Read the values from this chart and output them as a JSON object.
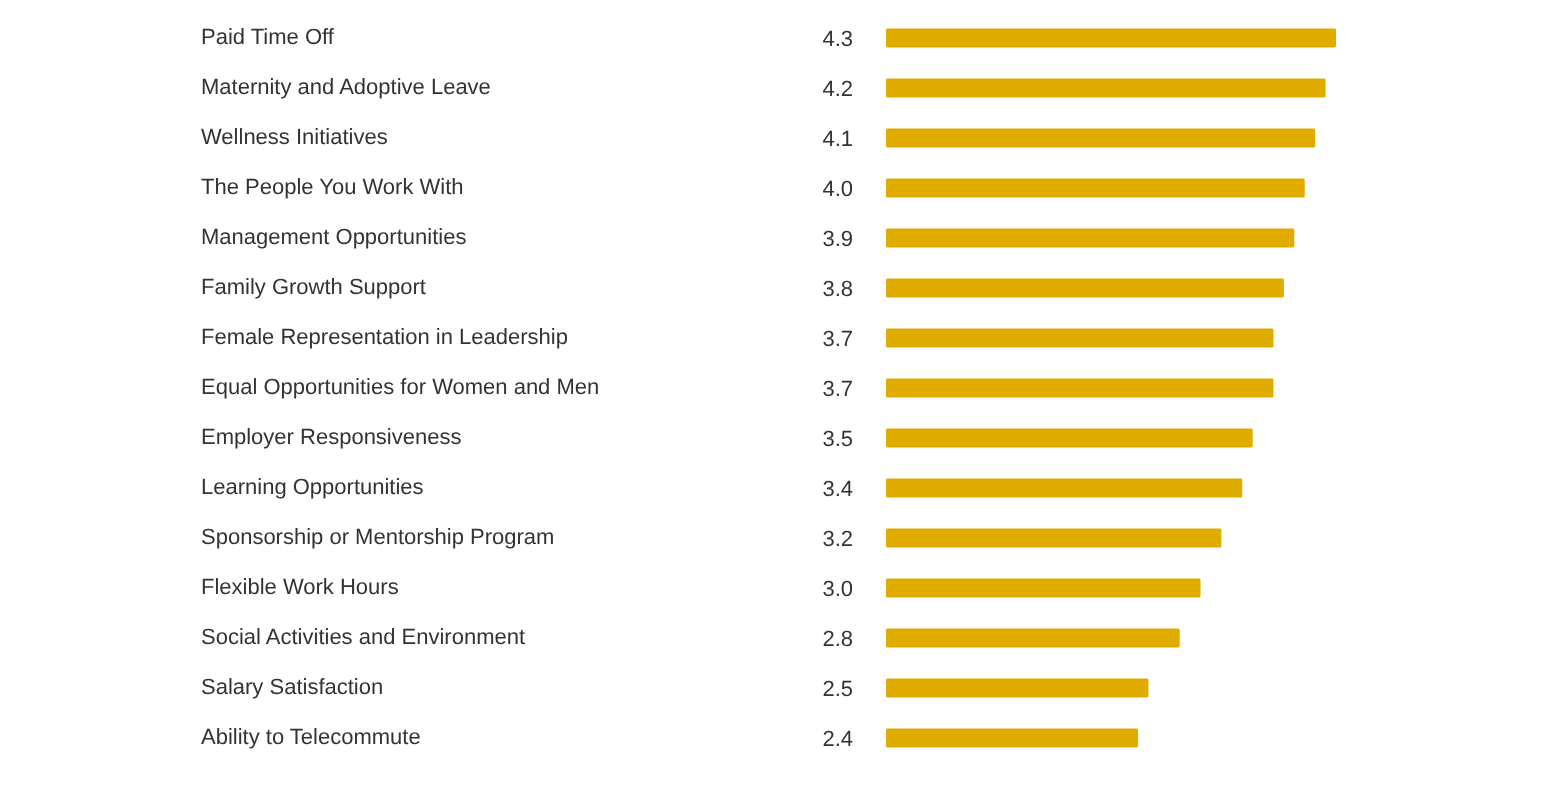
{
  "chart_data": {
    "type": "bar",
    "orientation": "horizontal",
    "categories": [
      "Paid Time Off",
      "Maternity and Adoptive Leave",
      "Wellness Initiatives",
      "The People You Work With",
      "Management Opportunities",
      "Family Growth Support",
      "Female Representation in Leadership",
      "Equal Opportunities for Women and Men",
      "Employer Responsiveness",
      "Learning Opportunities",
      "Sponsorship or Mentorship Program",
      "Flexible Work Hours",
      "Social Activities and Environment",
      "Salary Satisfaction",
      "Ability to Telecommute"
    ],
    "values": [
      4.3,
      4.2,
      4.1,
      4.0,
      3.9,
      3.8,
      3.7,
      3.7,
      3.5,
      3.4,
      3.2,
      3.0,
      2.8,
      2.5,
      2.4
    ],
    "value_labels": [
      "4.3",
      "4.2",
      "4.1",
      "4.0",
      "3.9",
      "3.8",
      "3.7",
      "3.7",
      "3.5",
      "3.4",
      "3.2",
      "3.0",
      "2.8",
      "2.5",
      "2.4"
    ],
    "color": "#e0ac00",
    "tick_labels": false,
    "grid": false
  }
}
